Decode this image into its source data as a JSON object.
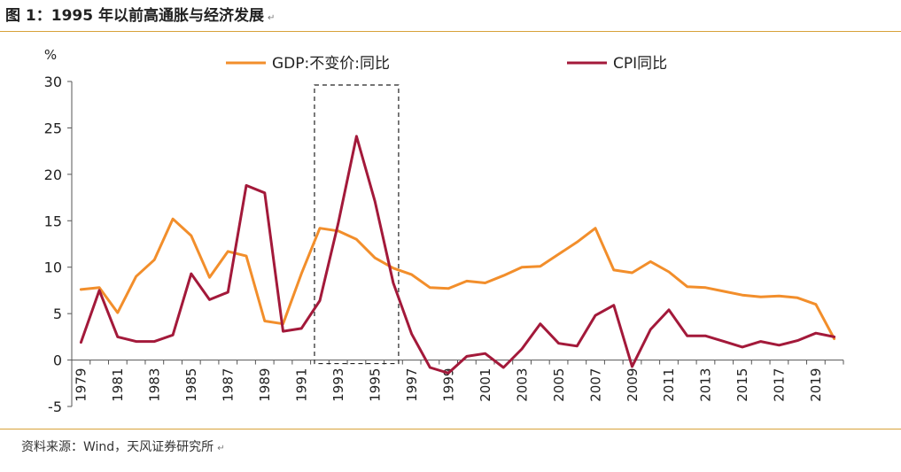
{
  "figure": {
    "title": "图 1：1995 年以前高通胀与经济发展",
    "source": "资料来源：Wind，天风证券研究所",
    "paragraph_mark": "↵"
  },
  "chart_data": {
    "type": "line",
    "ylabel": "%",
    "ylim": [
      -5,
      30
    ],
    "yticks": [
      "30",
      "25",
      "20",
      "15",
      "10",
      "5",
      "0",
      "-5"
    ],
    "xlim": [
      1979,
      2020
    ],
    "xticks": [
      "1979",
      "1981",
      "1983",
      "1985",
      "1987",
      "1989",
      "1991",
      "1993",
      "1995",
      "1997",
      "1999",
      "2001",
      "2003",
      "2005",
      "2007",
      "2009",
      "2011",
      "2013",
      "2015",
      "2017",
      "2019"
    ],
    "x": [
      1979,
      1980,
      1981,
      1982,
      1983,
      1984,
      1985,
      1986,
      1987,
      1988,
      1989,
      1990,
      1991,
      1992,
      1993,
      1994,
      1995,
      1996,
      1997,
      1998,
      1999,
      2000,
      2001,
      2002,
      2003,
      2004,
      2005,
      2006,
      2007,
      2008,
      2009,
      2010,
      2011,
      2012,
      2013,
      2014,
      2015,
      2016,
      2017,
      2018,
      2019,
      2020
    ],
    "series": [
      {
        "name": "GDP:不变价:同比",
        "color": "#f28e2b",
        "values": [
          7.6,
          7.8,
          5.1,
          9.0,
          10.8,
          15.2,
          13.4,
          8.9,
          11.7,
          11.2,
          4.2,
          3.9,
          9.3,
          14.2,
          13.9,
          13.0,
          11.0,
          9.9,
          9.2,
          7.8,
          7.7,
          8.5,
          8.3,
          9.1,
          10.0,
          10.1,
          11.4,
          12.7,
          14.2,
          9.7,
          9.4,
          10.6,
          9.5,
          7.9,
          7.8,
          7.4,
          7.0,
          6.8,
          6.9,
          6.7,
          6.0,
          2.3
        ]
      },
      {
        "name": "CPI同比",
        "color": "#a3193a",
        "values": [
          1.9,
          7.5,
          2.5,
          2.0,
          2.0,
          2.7,
          9.3,
          6.5,
          7.3,
          18.8,
          18.0,
          3.1,
          3.4,
          6.4,
          14.7,
          24.1,
          17.1,
          8.3,
          2.8,
          -0.8,
          -1.4,
          0.4,
          0.7,
          -0.8,
          1.2,
          3.9,
          1.8,
          1.5,
          4.8,
          5.9,
          -0.7,
          3.3,
          5.4,
          2.6,
          2.6,
          2.0,
          1.4,
          2.0,
          1.6,
          2.1,
          2.9,
          2.5
        ]
      }
    ],
    "highlight": {
      "x_range": [
        1992,
        1996
      ],
      "y_range": [
        0,
        30
      ],
      "style": "dashed box"
    },
    "legend": "top-center",
    "grid": false
  }
}
